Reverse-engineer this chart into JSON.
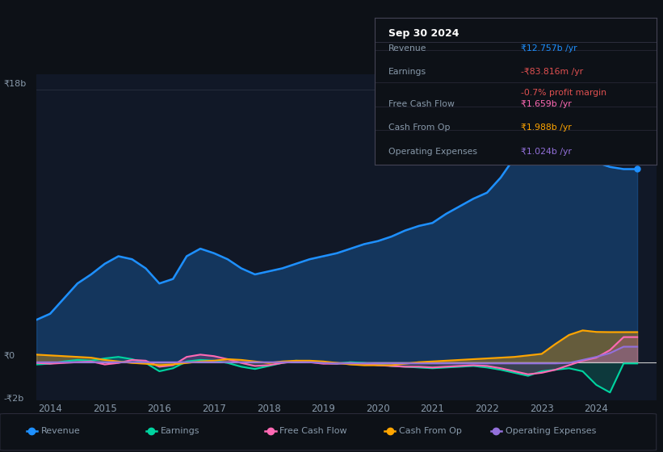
{
  "bg_color": "#0d1117",
  "plot_bg_color": "#111827",
  "title": "Sep 30 2024",
  "table_rows": [
    {
      "label": "Revenue",
      "value": "₹12.757b /yr",
      "val_color": "#1e90ff",
      "sub": null,
      "sub_color": null
    },
    {
      "label": "Earnings",
      "value": "-₹83.816m /yr",
      "val_color": "#e05050",
      "sub": "-0.7% profit margin",
      "sub_color": "#e05050"
    },
    {
      "label": "Free Cash Flow",
      "value": "₹1.659b /yr",
      "val_color": "#ff69b4",
      "sub": null,
      "sub_color": null
    },
    {
      "label": "Cash From Op",
      "value": "₹1.988b /yr",
      "val_color": "#ffa500",
      "sub": null,
      "sub_color": null
    },
    {
      "label": "Operating Expenses",
      "value": "₹1.024b /yr",
      "val_color": "#9370db",
      "sub": null,
      "sub_color": null
    }
  ],
  "x_years": [
    2013.75,
    2014.0,
    2014.25,
    2014.5,
    2014.75,
    2015.0,
    2015.25,
    2015.5,
    2015.75,
    2016.0,
    2016.25,
    2016.5,
    2016.75,
    2017.0,
    2017.25,
    2017.5,
    2017.75,
    2018.0,
    2018.25,
    2018.5,
    2018.75,
    2019.0,
    2019.25,
    2019.5,
    2019.75,
    2020.0,
    2020.25,
    2020.5,
    2020.75,
    2021.0,
    2021.25,
    2021.5,
    2021.75,
    2022.0,
    2022.25,
    2022.5,
    2022.75,
    2023.0,
    2023.25,
    2023.5,
    2023.75,
    2024.0,
    2024.25,
    2024.5,
    2024.75
  ],
  "revenue": [
    2.8,
    3.2,
    4.2,
    5.2,
    5.8,
    6.5,
    7.0,
    6.8,
    6.2,
    5.2,
    5.5,
    7.0,
    7.5,
    7.2,
    6.8,
    6.2,
    5.8,
    6.0,
    6.2,
    6.5,
    6.8,
    7.0,
    7.2,
    7.5,
    7.8,
    8.0,
    8.3,
    8.7,
    9.0,
    9.2,
    9.8,
    10.3,
    10.8,
    11.2,
    12.2,
    13.5,
    14.5,
    15.8,
    17.8,
    16.2,
    14.2,
    13.2,
    12.9,
    12.757,
    12.757
  ],
  "earnings": [
    -0.15,
    -0.1,
    0.05,
    0.15,
    0.1,
    0.25,
    0.35,
    0.2,
    -0.05,
    -0.6,
    -0.4,
    0.05,
    0.15,
    0.1,
    -0.05,
    -0.3,
    -0.45,
    -0.25,
    -0.05,
    0.1,
    0.05,
    -0.05,
    -0.1,
    0.0,
    -0.05,
    -0.15,
    -0.25,
    -0.3,
    -0.35,
    -0.4,
    -0.35,
    -0.3,
    -0.25,
    -0.35,
    -0.5,
    -0.7,
    -0.9,
    -0.6,
    -0.5,
    -0.4,
    -0.6,
    -1.5,
    -2.0,
    -0.084,
    -0.084
  ],
  "free_cash_flow": [
    -0.05,
    -0.1,
    -0.05,
    0.0,
    0.05,
    -0.15,
    -0.05,
    0.15,
    0.1,
    -0.3,
    -0.2,
    0.35,
    0.5,
    0.4,
    0.2,
    -0.05,
    -0.25,
    -0.2,
    -0.05,
    0.05,
    0.0,
    -0.1,
    -0.1,
    -0.05,
    -0.1,
    -0.2,
    -0.25,
    -0.3,
    -0.3,
    -0.35,
    -0.3,
    -0.25,
    -0.2,
    -0.25,
    -0.4,
    -0.6,
    -0.8,
    -0.7,
    -0.5,
    -0.2,
    0.1,
    0.3,
    0.8,
    1.659,
    1.659
  ],
  "cash_from_op": [
    0.5,
    0.45,
    0.4,
    0.35,
    0.3,
    0.15,
    0.05,
    -0.05,
    -0.1,
    -0.2,
    -0.15,
    -0.05,
    0.05,
    0.1,
    0.2,
    0.15,
    0.05,
    -0.05,
    0.05,
    0.1,
    0.1,
    0.05,
    -0.05,
    -0.15,
    -0.2,
    -0.2,
    -0.2,
    -0.1,
    0.0,
    0.05,
    0.1,
    0.15,
    0.2,
    0.25,
    0.3,
    0.35,
    0.45,
    0.55,
    1.2,
    1.8,
    2.1,
    2.0,
    1.988,
    1.988,
    1.988
  ],
  "operating_expenses": [
    0.0,
    0.0,
    0.0,
    0.0,
    0.0,
    0.0,
    0.0,
    0.0,
    0.0,
    0.0,
    0.0,
    0.0,
    0.0,
    0.0,
    0.0,
    0.0,
    0.0,
    0.0,
    0.0,
    0.0,
    0.0,
    -0.05,
    -0.08,
    -0.08,
    -0.08,
    -0.08,
    -0.08,
    -0.08,
    -0.08,
    -0.08,
    -0.08,
    -0.08,
    -0.08,
    -0.08,
    -0.08,
    -0.08,
    -0.08,
    -0.08,
    -0.08,
    -0.05,
    0.15,
    0.35,
    0.6,
    1.024,
    1.024
  ],
  "ylim": [
    -2.5,
    19.0
  ],
  "xlim": [
    2013.75,
    2025.1
  ],
  "y_label_18b": "₹18b",
  "y_label_0": "₹0",
  "y_label_neg2b": "-₹2b",
  "x_ticks": [
    2014,
    2015,
    2016,
    2017,
    2018,
    2019,
    2020,
    2021,
    2022,
    2023,
    2024
  ],
  "x_tick_labels": [
    "2014",
    "2015",
    "2016",
    "2017",
    "2018",
    "2019",
    "2020",
    "2021",
    "2022",
    "2023",
    "2024"
  ],
  "legend_items": [
    {
      "label": "Revenue",
      "color": "#1e90ff"
    },
    {
      "label": "Earnings",
      "color": "#00d4a0"
    },
    {
      "label": "Free Cash Flow",
      "color": "#ff69b4"
    },
    {
      "label": "Cash From Op",
      "color": "#ffa500"
    },
    {
      "label": "Operating Expenses",
      "color": "#9370db"
    }
  ],
  "grid_color": "#2a3040",
  "text_color": "#8899aa",
  "revenue_color": "#1e90ff",
  "earnings_color": "#00d4a0",
  "fcf_color": "#ff69b4",
  "cash_op_color": "#ffa500",
  "op_exp_color": "#9370db",
  "zero_line_color": "#cccccc",
  "box_bg": "#0d1117",
  "box_border": "#444455",
  "box_title_color": "#ffffff",
  "box_label_color": "#8899aa",
  "box_divider_color": "#333344"
}
